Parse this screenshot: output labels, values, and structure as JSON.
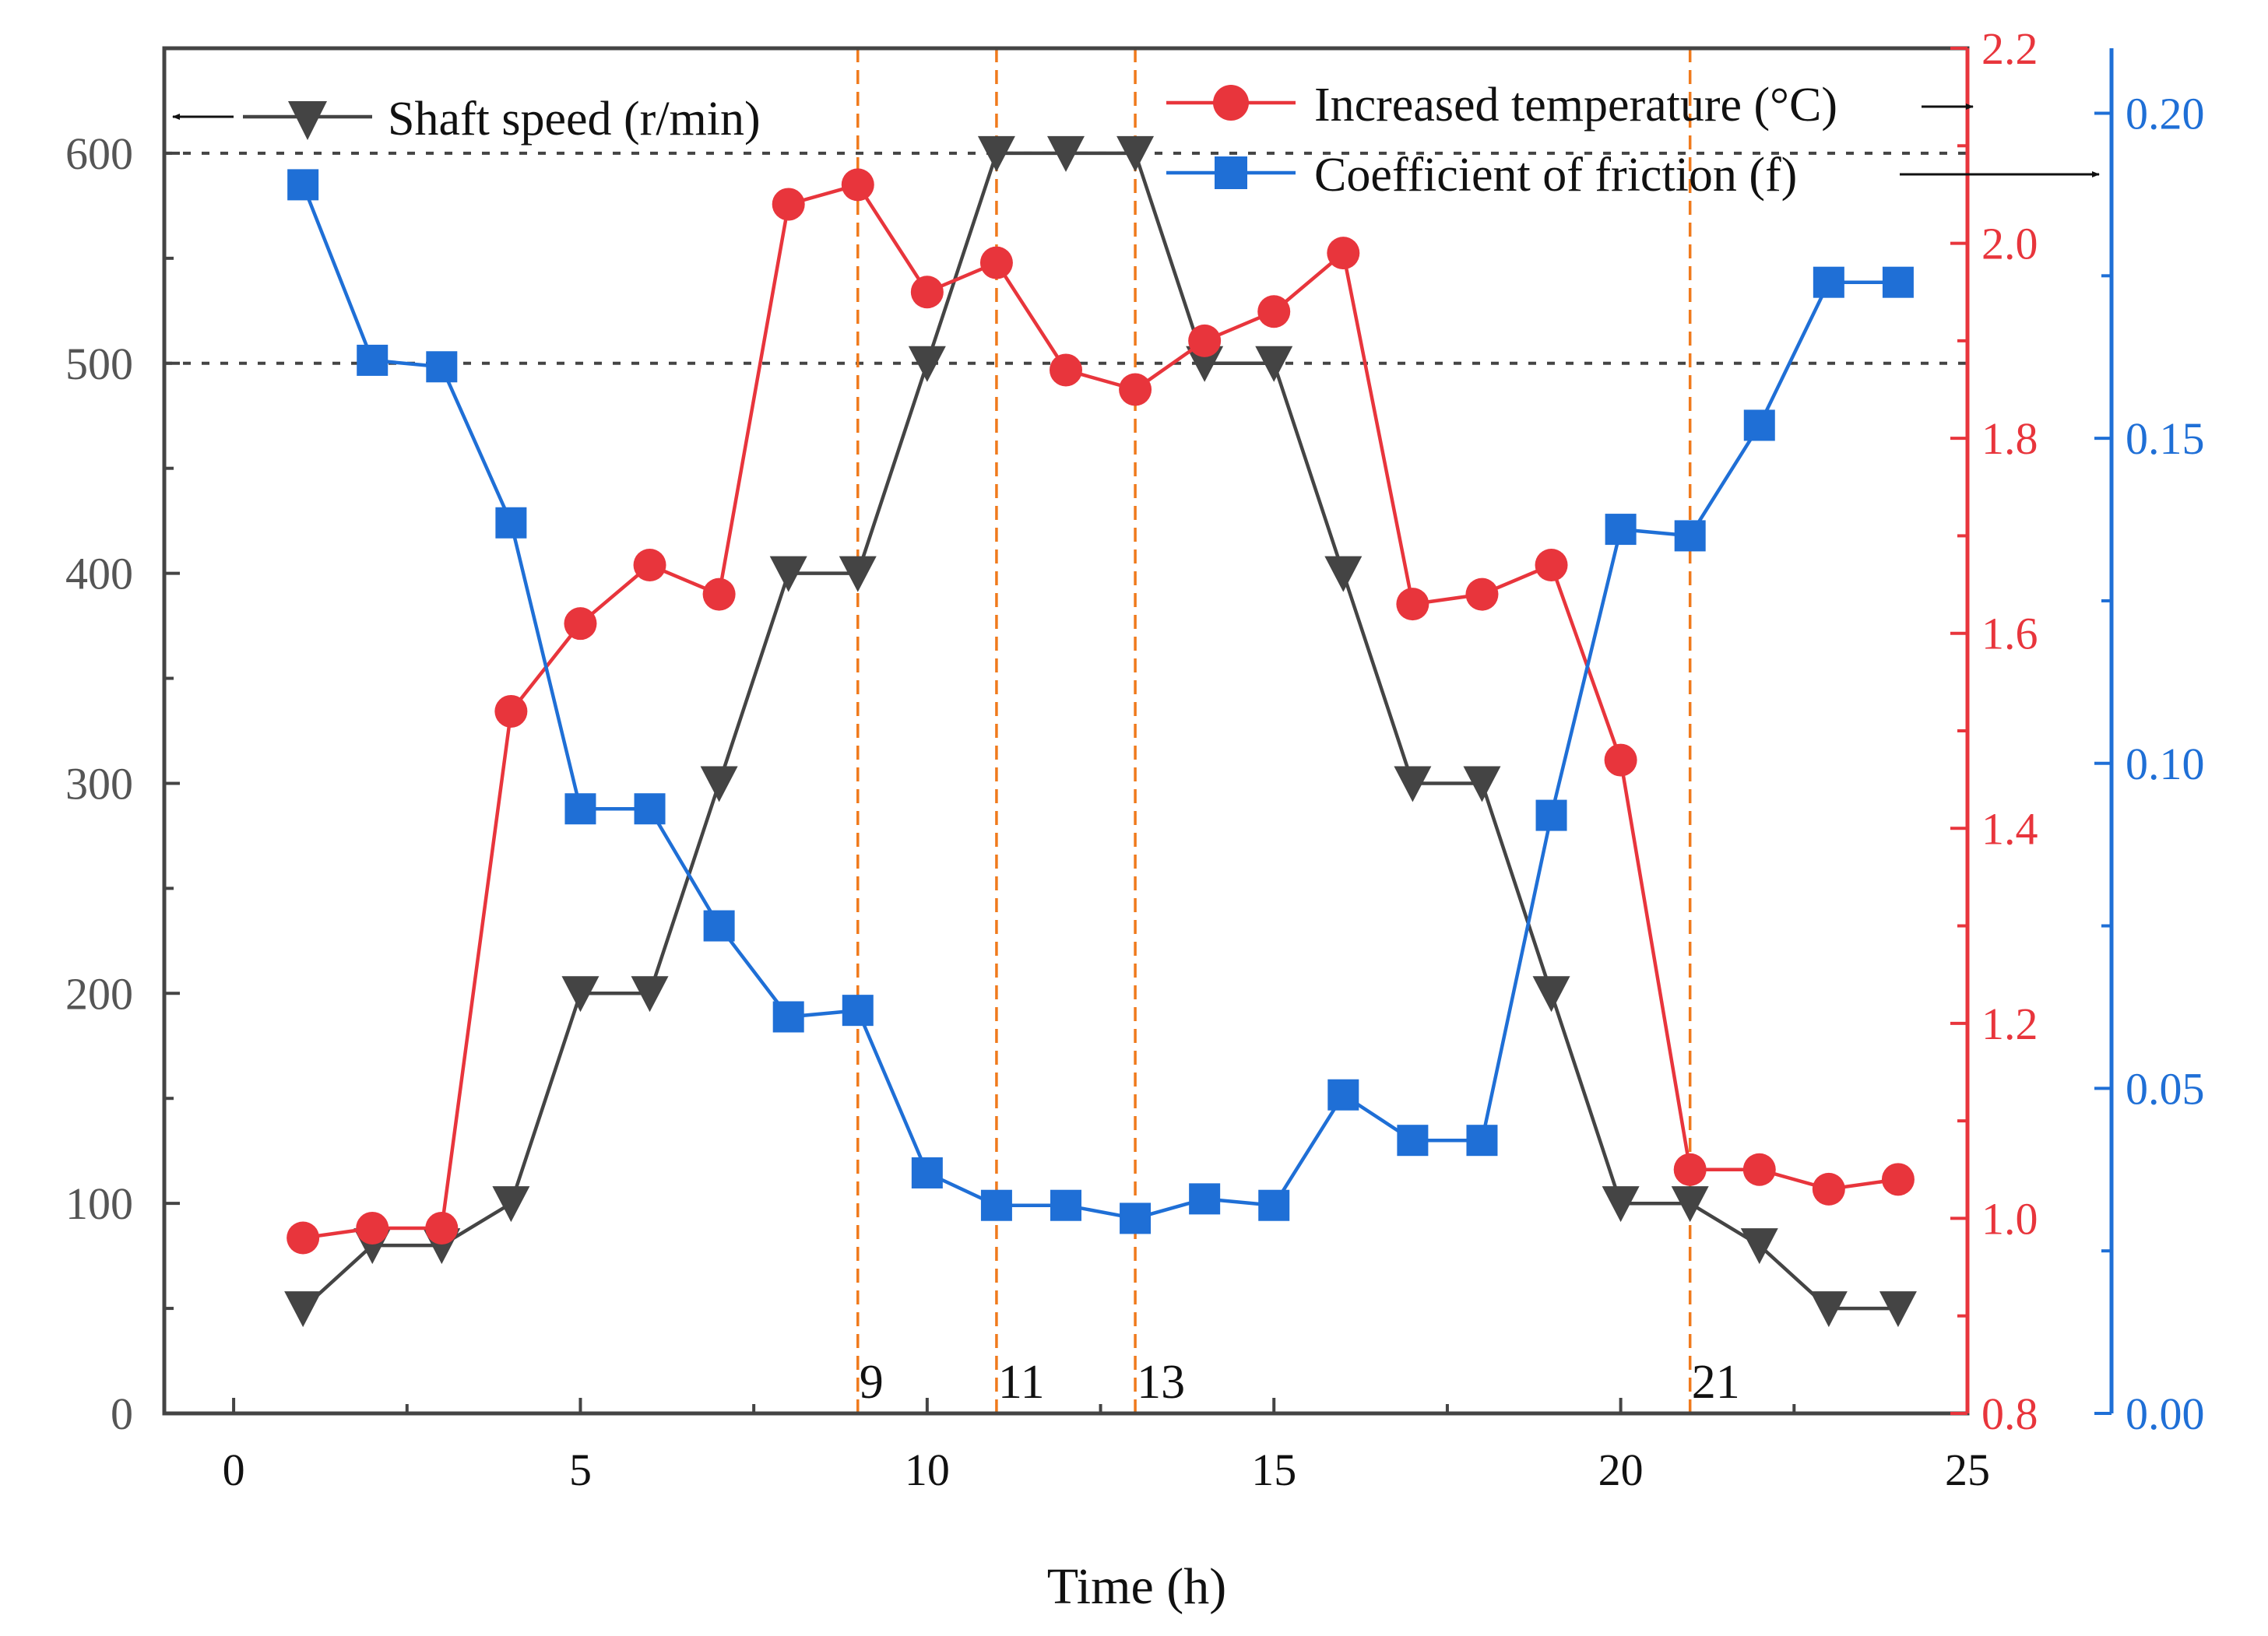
{
  "chart_data": {
    "type": "line",
    "title": "",
    "xlabel": "Time (h)",
    "xlim": [
      -1,
      25
    ],
    "x_ticks": [
      0,
      5,
      10,
      15,
      20,
      25
    ],
    "x_tick_labels": [
      "0",
      "5",
      "10",
      "15",
      "20",
      "25"
    ],
    "x": [
      1,
      2,
      3,
      4,
      5,
      6,
      7,
      8,
      9,
      10,
      11,
      12,
      13,
      14,
      15,
      16,
      17,
      18,
      19,
      20,
      21,
      22,
      23,
      24
    ],
    "axes": {
      "left": {
        "range": [
          0,
          650
        ],
        "ticks": [
          0,
          100,
          200,
          300,
          400,
          500,
          600
        ],
        "tick_labels": [
          "0",
          "100",
          "200",
          "300",
          "400",
          "500",
          "600"
        ],
        "color": "#555555"
      },
      "right1": {
        "range": [
          0.8,
          2.2
        ],
        "ticks": [
          0.8,
          1.0,
          1.2,
          1.4,
          1.6,
          1.8,
          2.0,
          2.2
        ],
        "tick_labels": [
          "0.8",
          "1.0",
          "1.2",
          "1.4",
          "1.6",
          "1.8",
          "2.0",
          "2.2"
        ],
        "color": "#e8353c"
      },
      "right2": {
        "range": [
          0,
          0.21
        ],
        "ticks": [
          0.0,
          0.05,
          0.1,
          0.15,
          0.2
        ],
        "tick_labels": [
          "0.00",
          "0.05",
          "0.10",
          "0.15",
          "0.20"
        ],
        "color": "#1f6fd6"
      }
    },
    "series": [
      {
        "name": "Shaft speed (r/min)",
        "axis": "left",
        "marker": "triangle-down",
        "color": "#444444",
        "values": [
          50,
          80,
          80,
          100,
          200,
          200,
          300,
          400,
          400,
          500,
          600,
          600,
          600,
          500,
          500,
          400,
          300,
          300,
          200,
          100,
          100,
          80,
          50,
          50
        ]
      },
      {
        "name": "Increased temperature (°C)",
        "axis": "right1",
        "marker": "circle",
        "color": "#e8353c",
        "values": [
          0.98,
          0.99,
          0.99,
          1.52,
          1.61,
          1.67,
          1.64,
          2.04,
          2.06,
          1.95,
          1.98,
          1.87,
          1.85,
          1.9,
          1.93,
          1.99,
          1.63,
          1.64,
          1.67,
          1.47,
          1.05,
          1.05,
          1.03,
          1.04
        ]
      },
      {
        "name": "Coefficient of friction (f)",
        "axis": "right2",
        "marker": "square",
        "color": "#1f6fd6",
        "values": [
          0.189,
          0.162,
          0.161,
          0.137,
          0.093,
          0.093,
          0.075,
          0.061,
          0.062,
          0.037,
          0.032,
          0.032,
          0.03,
          0.033,
          0.032,
          0.049,
          0.042,
          0.042,
          0.092,
          0.136,
          0.135,
          0.152,
          0.174,
          0.174
        ]
      }
    ],
    "reference_lines": {
      "horizontal": [
        600,
        500
      ],
      "vertical": [
        9,
        11,
        13,
        21
      ],
      "vertical_labels": [
        "9",
        "11",
        "13",
        "21"
      ]
    },
    "legend_position": "top"
  }
}
